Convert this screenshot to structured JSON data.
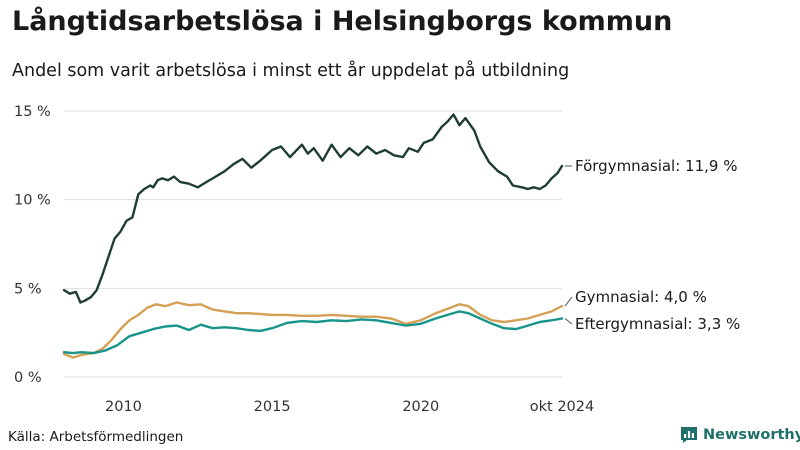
{
  "title": "Långtidsarbetslösa i Helsingborgs kommun",
  "subtitle": "Andel som varit arbetslösa i minst ett år uppdelat på utbildning",
  "source": "Källa: Arbetsförmedlingen",
  "brand": "Newsworthy",
  "colors": {
    "forgymnasial": "#1f3d36",
    "gymnasial": "#d4a055",
    "eftergymnasial": "#17958a",
    "grid": "#dddddd",
    "brand": "#1f6f6a"
  },
  "icons": {
    "brand_logo": "bar-chart-speech-bubble-icon"
  },
  "chart_data": {
    "type": "line",
    "title": "Långtidsarbetslösa i Helsingborgs kommun",
    "xlabel": "",
    "ylabel": "",
    "xlim": [
      2008.0,
      2024.75
    ],
    "ylim": [
      0,
      15
    ],
    "y_ticks": [
      0,
      5,
      10,
      15
    ],
    "y_tick_labels": [
      "0 %",
      "5 %",
      "10 %",
      "15 %"
    ],
    "x_ticks": [
      2010,
      2015,
      2020,
      2024.75
    ],
    "x_tick_labels": [
      "2010",
      "2015",
      "2020",
      "okt 2024"
    ],
    "grid": true,
    "series": [
      {
        "key": "forgymnasial",
        "name": "Förgymnasial",
        "label": "Förgymnasial: 11,9 %",
        "latest": 11.9,
        "x": [
          2008.0,
          2008.2,
          2008.4,
          2008.55,
          2008.7,
          2008.9,
          2009.1,
          2009.3,
          2009.5,
          2009.7,
          2009.9,
          2010.1,
          2010.3,
          2010.5,
          2010.7,
          2010.9,
          2011.0,
          2011.15,
          2011.3,
          2011.5,
          2011.7,
          2011.9,
          2012.2,
          2012.5,
          2012.8,
          2013.1,
          2013.4,
          2013.7,
          2014.0,
          2014.3,
          2014.6,
          2015.0,
          2015.3,
          2015.6,
          2016.0,
          2016.2,
          2016.4,
          2016.7,
          2017.0,
          2017.3,
          2017.6,
          2017.9,
          2018.2,
          2018.5,
          2018.8,
          2019.1,
          2019.4,
          2019.6,
          2019.9,
          2020.1,
          2020.4,
          2020.7,
          2020.9,
          2021.1,
          2021.3,
          2021.5,
          2021.8,
          2022.0,
          2022.3,
          2022.6,
          2022.9,
          2023.1,
          2023.4,
          2023.6,
          2023.8,
          2024.0,
          2024.2,
          2024.4,
          2024.6,
          2024.75
        ],
        "y": [
          4.9,
          4.7,
          4.8,
          4.2,
          4.3,
          4.5,
          4.9,
          5.8,
          6.8,
          7.8,
          8.2,
          8.8,
          9.0,
          10.3,
          10.6,
          10.8,
          10.7,
          11.1,
          11.2,
          11.1,
          11.3,
          11.0,
          10.9,
          10.7,
          11.0,
          11.3,
          11.6,
          12.0,
          12.3,
          11.8,
          12.2,
          12.8,
          13.0,
          12.4,
          13.1,
          12.6,
          12.9,
          12.2,
          13.1,
          12.4,
          12.9,
          12.5,
          13.0,
          12.6,
          12.8,
          12.5,
          12.4,
          12.9,
          12.7,
          13.2,
          13.4,
          14.1,
          14.4,
          14.8,
          14.2,
          14.6,
          13.9,
          13.0,
          12.1,
          11.6,
          11.3,
          10.8,
          10.7,
          10.6,
          10.7,
          10.6,
          10.8,
          11.2,
          11.5,
          11.9
        ]
      },
      {
        "key": "gymnasial",
        "name": "Gymnasial",
        "label": "Gymnasial:  4,0 %",
        "latest": 4.0,
        "x": [
          2008.0,
          2008.3,
          2008.6,
          2009.0,
          2009.3,
          2009.6,
          2009.9,
          2010.2,
          2010.5,
          2010.8,
          2011.1,
          2011.4,
          2011.8,
          2012.2,
          2012.6,
          2013.0,
          2013.4,
          2013.8,
          2014.2,
          2014.6,
          2015.0,
          2015.5,
          2016.0,
          2016.5,
          2017.0,
          2017.5,
          2018.0,
          2018.5,
          2019.0,
          2019.5,
          2020.0,
          2020.5,
          2021.0,
          2021.3,
          2021.6,
          2022.0,
          2022.4,
          2022.8,
          2023.2,
          2023.6,
          2024.0,
          2024.4,
          2024.75
        ],
        "y": [
          1.3,
          1.1,
          1.25,
          1.35,
          1.6,
          2.1,
          2.7,
          3.2,
          3.5,
          3.9,
          4.1,
          4.0,
          4.2,
          4.05,
          4.1,
          3.8,
          3.7,
          3.6,
          3.6,
          3.55,
          3.5,
          3.5,
          3.45,
          3.45,
          3.5,
          3.45,
          3.4,
          3.4,
          3.3,
          3.0,
          3.2,
          3.6,
          3.9,
          4.1,
          4.0,
          3.5,
          3.2,
          3.1,
          3.2,
          3.3,
          3.5,
          3.7,
          4.0
        ]
      },
      {
        "key": "eftergymnasial",
        "name": "Eftergymnasial",
        "label": "Eftergymnasial:  3,3 %",
        "latest": 3.3,
        "x": [
          2008.0,
          2008.3,
          2008.6,
          2009.0,
          2009.4,
          2009.8,
          2010.2,
          2010.6,
          2011.0,
          2011.4,
          2011.8,
          2012.2,
          2012.6,
          2013.0,
          2013.4,
          2013.8,
          2014.2,
          2014.6,
          2015.0,
          2015.5,
          2016.0,
          2016.5,
          2017.0,
          2017.5,
          2018.0,
          2018.5,
          2019.0,
          2019.5,
          2020.0,
          2020.5,
          2021.0,
          2021.3,
          2021.6,
          2022.0,
          2022.4,
          2022.8,
          2023.2,
          2023.6,
          2024.0,
          2024.4,
          2024.75
        ],
        "y": [
          1.4,
          1.35,
          1.4,
          1.35,
          1.5,
          1.8,
          2.3,
          2.5,
          2.7,
          2.85,
          2.9,
          2.65,
          2.95,
          2.75,
          2.8,
          2.75,
          2.65,
          2.6,
          2.75,
          3.05,
          3.15,
          3.1,
          3.2,
          3.15,
          3.25,
          3.2,
          3.05,
          2.9,
          3.0,
          3.3,
          3.55,
          3.7,
          3.6,
          3.3,
          3.0,
          2.75,
          2.7,
          2.9,
          3.1,
          3.2,
          3.3
        ]
      }
    ]
  }
}
